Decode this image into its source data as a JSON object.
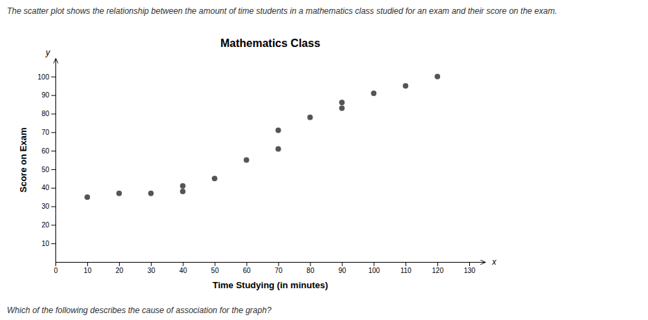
{
  "chart_data": {
    "type": "scatter",
    "title": "Mathematics Class",
    "x_label": "Time Studying (in minutes)",
    "y_label": "Score on Exam",
    "x": [
      10,
      20,
      30,
      40,
      40,
      50,
      60,
      70,
      70,
      80,
      90,
      90,
      100,
      110,
      120
    ],
    "values": [
      35,
      37,
      37,
      38,
      41,
      45,
      55,
      61,
      71,
      78,
      83,
      86,
      91,
      95,
      100
    ],
    "color": "#555555",
    "xlim": [
      0,
      135
    ],
    "ylim": [
      0,
      110
    ],
    "xticks": [
      0,
      10,
      20,
      30,
      40,
      50,
      60,
      70,
      80,
      90,
      100,
      110,
      120,
      130
    ],
    "yticks": [
      10,
      20,
      30,
      40,
      50,
      60,
      70,
      80,
      90,
      100
    ],
    "grid": false,
    "annotations": [
      "The scatter plot shows the relationship between the amount of time students in a mathematics class studied for an exam and their score on the exam.",
      "Which of the following describes the cause of association for the graph?",
      "x",
      "y"
    ]
  }
}
